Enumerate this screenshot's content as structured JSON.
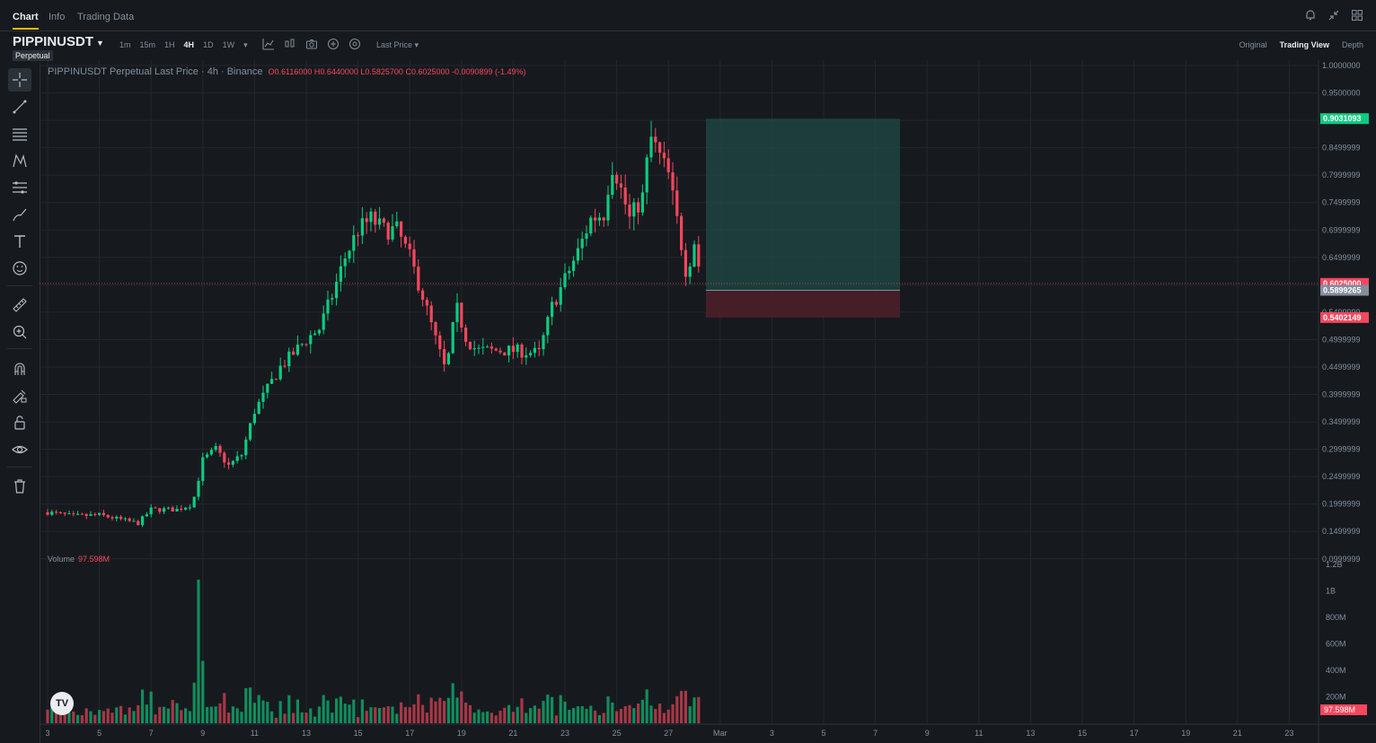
{
  "nav": {
    "tabs": [
      {
        "label": "Chart"
      },
      {
        "label": "Info"
      },
      {
        "label": "Trading Data"
      }
    ]
  },
  "top_icons": [
    "bell-icon",
    "collapse-icon",
    "grid-icon"
  ],
  "toolbar": {
    "symbol": "PIPPINUSDT",
    "contract_type": "Perpetual",
    "intervals": [
      "1m",
      "15m",
      "1H",
      "4H",
      "1D",
      "1W"
    ],
    "active_interval": "4H",
    "price_type": "Last Price",
    "views": [
      "Original",
      "Trading View",
      "Depth"
    ],
    "active_view": "Trading View"
  },
  "legend": {
    "title": "PIPPINUSDT Perpetual Last Price · 4h · Binance",
    "ohlc": "O0.6116000 H0.6440000 L0.5825700 C0.6025000 -0.0090899 (-1.49%)"
  },
  "volume_legend": {
    "label": "Volume",
    "value": "97.598M"
  },
  "left_tools": [
    "crosshair-icon",
    "trend-line-icon",
    "horizontal-lines-icon",
    "pattern-icon",
    "fib-icon",
    "brush-icon",
    "text-icon",
    "emoji-icon",
    "ruler-icon",
    "zoom-in-icon",
    "magnet-icon",
    "lock-drawing-icon",
    "unlock-icon",
    "eye-icon",
    "trash-icon"
  ],
  "colors": {
    "up": "#0ecb81",
    "down": "#f6465d",
    "background": "#161a1e",
    "grid": "#23272e",
    "profit_zone": "#1f4a45",
    "loss_zone": "#4a1f28"
  },
  "chart_data": {
    "type": "candlestick",
    "symbol": "PIPPINUSDT",
    "interval": "4h",
    "y_ticks": [
      "1.0000000",
      "0.9500000",
      "0.8999999",
      "0.8499999",
      "0.7999999",
      "0.7499999",
      "0.6999999",
      "0.6499999",
      "0.5999999",
      "0.5499999",
      "0.4999999",
      "0.4499999",
      "0.3999999",
      "0.3499999",
      "0.2999999",
      "0.2499999",
      "0.1999999",
      "0.1499999",
      "0.0999999"
    ],
    "y_range": [
      0.08,
      1.0
    ],
    "x_ticks": [
      "3",
      "5",
      "7",
      "9",
      "11",
      "13",
      "15",
      "17",
      "19",
      "21",
      "23",
      "25",
      "27",
      "Mar",
      "3",
      "5",
      "7",
      "9",
      "11",
      "13",
      "15",
      "17",
      "19",
      "21",
      "23"
    ],
    "price_labels": [
      {
        "text": "0.9031093",
        "value": 0.9031093,
        "color": "#0ecb81"
      },
      {
        "text": "0.6025000",
        "value": 0.6025,
        "color": "#f6465d"
      },
      {
        "text": "0.5899265",
        "value": 0.5899265,
        "color": "#848e9c"
      },
      {
        "text": "0.5402149",
        "value": 0.5402149,
        "color": "#f6465d"
      }
    ],
    "position": {
      "target": 0.9031093,
      "entry": 0.5899265,
      "stop": 0.5402149
    },
    "volume_ticks": [
      "1.2B",
      "1B",
      "800M",
      "600M",
      "400M",
      "200M"
    ],
    "volume_last": "97.598M",
    "anchors": [
      {
        "d": 3,
        "p": 0.185
      },
      {
        "d": 4,
        "p": 0.178
      },
      {
        "d": 5,
        "p": 0.18
      },
      {
        "d": 6,
        "p": 0.17
      },
      {
        "d": 6.5,
        "p": 0.165
      },
      {
        "d": 7,
        "p": 0.19
      },
      {
        "d": 8,
        "p": 0.19
      },
      {
        "d": 8.6,
        "p": 0.2
      },
      {
        "d": 9,
        "p": 0.28
      },
      {
        "d": 9.5,
        "p": 0.3
      },
      {
        "d": 10,
        "p": 0.27
      },
      {
        "d": 10.5,
        "p": 0.29
      },
      {
        "d": 11,
        "p": 0.37
      },
      {
        "d": 12,
        "p": 0.45
      },
      {
        "d": 13,
        "p": 0.5
      },
      {
        "d": 13.5,
        "p": 0.52
      },
      {
        "d": 14,
        "p": 0.58
      },
      {
        "d": 14.5,
        "p": 0.65
      },
      {
        "d": 15,
        "p": 0.7
      },
      {
        "d": 15.5,
        "p": 0.72
      },
      {
        "d": 16,
        "p": 0.7
      },
      {
        "d": 16.5,
        "p": 0.7
      },
      {
        "d": 17,
        "p": 0.65
      },
      {
        "d": 17.5,
        "p": 0.58
      },
      {
        "d": 18,
        "p": 0.5
      },
      {
        "d": 18.4,
        "p": 0.44
      },
      {
        "d": 18.8,
        "p": 0.56
      },
      {
        "d": 19.2,
        "p": 0.5
      },
      {
        "d": 19.6,
        "p": 0.48
      },
      {
        "d": 20.5,
        "p": 0.48
      },
      {
        "d": 21,
        "p": 0.48
      },
      {
        "d": 22,
        "p": 0.475
      },
      {
        "d": 22.5,
        "p": 0.56
      },
      {
        "d": 23,
        "p": 0.61
      },
      {
        "d": 23.5,
        "p": 0.66
      },
      {
        "d": 24,
        "p": 0.72
      },
      {
        "d": 24.5,
        "p": 0.73
      },
      {
        "d": 24.8,
        "p": 0.82
      },
      {
        "d": 25,
        "p": 0.8
      },
      {
        "d": 25.5,
        "p": 0.72
      },
      {
        "d": 26,
        "p": 0.76
      },
      {
        "d": 26.3,
        "p": 0.87
      },
      {
        "d": 26.6,
        "p": 0.84
      },
      {
        "d": 27,
        "p": 0.8
      },
      {
        "d": 27.4,
        "p": 0.7
      },
      {
        "d": 27.7,
        "p": 0.62
      },
      {
        "d": 28,
        "p": 0.68
      },
      {
        "d": 28.3,
        "p": 0.6
      }
    ]
  }
}
